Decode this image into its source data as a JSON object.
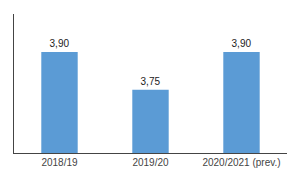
{
  "chart_data": {
    "type": "bar",
    "categories": [
      "2018/19",
      "2019/20",
      "2020/2021 (prev.)"
    ],
    "values": [
      3.9,
      3.75,
      3.9
    ],
    "value_labels": [
      "3,90",
      "3,75",
      "3,90"
    ],
    "color": "#5b9bd5",
    "ylim": [
      3.5,
      4.05
    ],
    "grid": false,
    "data_labels": true,
    "tick_labels": "x"
  }
}
